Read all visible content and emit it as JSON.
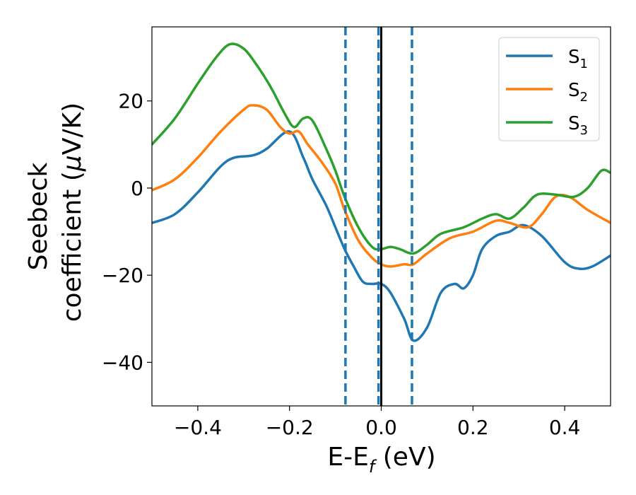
{
  "chart_data": {
    "type": "line",
    "xlabel": {
      "main": "E-E",
      "sub": "f",
      "tail": " (eV)"
    },
    "ylabel": {
      "line1": "Seebeck",
      "line2": "coefficient  (",
      "mu": "μ",
      "unit": "V/K)"
    },
    "xlim": [
      -0.5,
      0.5
    ],
    "ylim": [
      -50,
      37
    ],
    "xticks": [
      {
        "value": -0.4,
        "label": "−0.4"
      },
      {
        "value": -0.2,
        "label": "−0.2"
      },
      {
        "value": 0.0,
        "label": "0.0"
      },
      {
        "value": 0.2,
        "label": "0.2"
      },
      {
        "value": 0.4,
        "label": "0.4"
      }
    ],
    "yticks": [
      {
        "value": -40,
        "label": "−40"
      },
      {
        "value": -20,
        "label": "−20"
      },
      {
        "value": 0,
        "label": "0"
      },
      {
        "value": 20,
        "label": "20"
      }
    ],
    "legend_position": "top-right",
    "vlines": [
      {
        "x": -0.078,
        "style": "dashed",
        "color": "#1f77b4"
      },
      {
        "x": -0.006,
        "style": "dashed",
        "color": "#1f77b4"
      },
      {
        "x": 0.0,
        "style": "solid",
        "color": "#000000"
      },
      {
        "x": 0.067,
        "style": "dashed",
        "color": "#1f77b4"
      }
    ],
    "series": [
      {
        "name": "S",
        "sub": "1",
        "color": "#1f77b4",
        "points": [
          [
            -0.5,
            -8
          ],
          [
            -0.45,
            -6
          ],
          [
            -0.4,
            -1
          ],
          [
            -0.35,
            5
          ],
          [
            -0.32,
            7
          ],
          [
            -0.28,
            7.5
          ],
          [
            -0.25,
            9
          ],
          [
            -0.2,
            13
          ],
          [
            -0.17,
            7
          ],
          [
            -0.15,
            2
          ],
          [
            -0.12,
            -4
          ],
          [
            -0.1,
            -9
          ],
          [
            -0.08,
            -14
          ],
          [
            -0.06,
            -18
          ],
          [
            -0.04,
            -21.5
          ],
          [
            -0.02,
            -22
          ],
          [
            0.0,
            -22
          ],
          [
            0.02,
            -24
          ],
          [
            0.05,
            -30
          ],
          [
            0.07,
            -35
          ],
          [
            0.1,
            -32
          ],
          [
            0.13,
            -24
          ],
          [
            0.16,
            -22
          ],
          [
            0.18,
            -23
          ],
          [
            0.2,
            -20
          ],
          [
            0.22,
            -14
          ],
          [
            0.25,
            -11
          ],
          [
            0.28,
            -10
          ],
          [
            0.31,
            -8.5
          ],
          [
            0.35,
            -11
          ],
          [
            0.4,
            -17
          ],
          [
            0.43,
            -18.5
          ],
          [
            0.46,
            -18
          ],
          [
            0.5,
            -15.5
          ]
        ]
      },
      {
        "name": "S",
        "sub": "2",
        "color": "#ff7f0e",
        "points": [
          [
            -0.5,
            -0.5
          ],
          [
            -0.45,
            2
          ],
          [
            -0.4,
            7
          ],
          [
            -0.35,
            13
          ],
          [
            -0.3,
            18
          ],
          [
            -0.28,
            19
          ],
          [
            -0.25,
            18
          ],
          [
            -0.22,
            14
          ],
          [
            -0.2,
            12.5
          ],
          [
            -0.18,
            13
          ],
          [
            -0.16,
            10
          ],
          [
            -0.13,
            6
          ],
          [
            -0.1,
            1
          ],
          [
            -0.08,
            -5
          ],
          [
            -0.05,
            -12
          ],
          [
            -0.02,
            -16
          ],
          [
            0.0,
            -17.5
          ],
          [
            0.02,
            -18
          ],
          [
            0.05,
            -17.5
          ],
          [
            0.07,
            -17.5
          ],
          [
            0.1,
            -15
          ],
          [
            0.15,
            -11.5
          ],
          [
            0.2,
            -10
          ],
          [
            0.25,
            -7.5
          ],
          [
            0.28,
            -8
          ],
          [
            0.32,
            -9
          ],
          [
            0.35,
            -6
          ],
          [
            0.38,
            -2
          ],
          [
            0.41,
            -2
          ],
          [
            0.45,
            -5
          ],
          [
            0.5,
            -8
          ]
        ]
      },
      {
        "name": "S",
        "sub": "3",
        "color": "#2ca02c",
        "points": [
          [
            -0.5,
            10
          ],
          [
            -0.45,
            16
          ],
          [
            -0.4,
            24
          ],
          [
            -0.36,
            30
          ],
          [
            -0.33,
            33
          ],
          [
            -0.3,
            32
          ],
          [
            -0.27,
            28
          ],
          [
            -0.24,
            23
          ],
          [
            -0.21,
            17
          ],
          [
            -0.19,
            14
          ],
          [
            -0.17,
            16
          ],
          [
            -0.15,
            15.5
          ],
          [
            -0.12,
            9
          ],
          [
            -0.1,
            4
          ],
          [
            -0.08,
            -2
          ],
          [
            -0.05,
            -9
          ],
          [
            -0.02,
            -13.5
          ],
          [
            0.0,
            -14
          ],
          [
            0.02,
            -13.5
          ],
          [
            0.04,
            -14
          ],
          [
            0.07,
            -15
          ],
          [
            0.1,
            -13
          ],
          [
            0.13,
            -10.5
          ],
          [
            0.18,
            -9
          ],
          [
            0.22,
            -7
          ],
          [
            0.25,
            -6
          ],
          [
            0.28,
            -7
          ],
          [
            0.31,
            -4.5
          ],
          [
            0.34,
            -1.5
          ],
          [
            0.38,
            -1.5
          ],
          [
            0.42,
            -2
          ],
          [
            0.45,
            0
          ],
          [
            0.48,
            4
          ],
          [
            0.5,
            3.5
          ]
        ]
      }
    ]
  }
}
